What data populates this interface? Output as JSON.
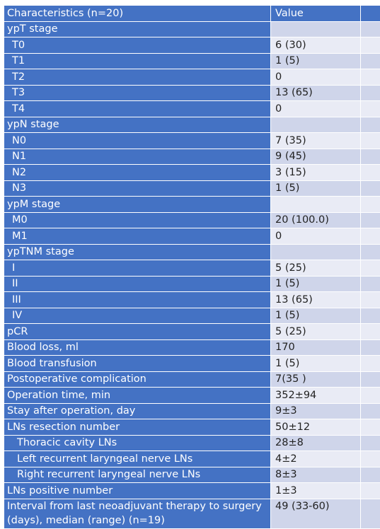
{
  "header": {
    "characteristics": "Characteristics (n=20)",
    "value": "Value"
  },
  "rows": [
    {
      "label": "ypT stage",
      "value": ""
    },
    {
      "label": "T0",
      "value": "6 (30)"
    },
    {
      "label": "T1",
      "value": "1 (5)"
    },
    {
      "label": "T2",
      "value": "0"
    },
    {
      "label": "T3",
      "value": "13 (65)"
    },
    {
      "label": "T4",
      "value": "0"
    },
    {
      "label": "ypN stage",
      "value": ""
    },
    {
      "label": "N0",
      "value": "7 (35)"
    },
    {
      "label": "N1",
      "value": "9 (45)"
    },
    {
      "label": "N2",
      "value": "3 (15)"
    },
    {
      "label": "N3",
      "value": "1 (5)"
    },
    {
      "label": "ypM stage",
      "value": ""
    },
    {
      "label": "M0",
      "value": "20 (100.0)"
    },
    {
      "label": "M1",
      "value": "0"
    },
    {
      "label": "ypTNM stage",
      "value": ""
    },
    {
      "label": "I",
      "value": "5 (25)"
    },
    {
      "label": "II",
      "value": "1 (5)"
    },
    {
      "label": "III",
      "value": "13 (65)"
    },
    {
      "label": "IV",
      "value": "1 (5)"
    },
    {
      "label": "pCR",
      "value": "5 (25)"
    },
    {
      "label": "Blood loss, ml",
      "value": "170"
    },
    {
      "label": "Blood transfusion",
      "value": "1 (5)"
    },
    {
      "label": "Postoperative complication",
      "value": "7(35 )"
    },
    {
      "label": "Operation time, min",
      "value": "352±94"
    },
    {
      "label": "Stay after operation, day",
      "value": "9±3"
    },
    {
      "label": "LNs resection number",
      "value": "50±12"
    },
    {
      "label": "Thoracic cavity LNs",
      "value": "28±8"
    },
    {
      "label": "Left recurrent laryngeal nerve LNs",
      "value": "4±2"
    },
    {
      "label": "Right recurrent laryngeal nerve LNs",
      "value": "8±3"
    },
    {
      "label": "LNs positive number",
      "value": "1±3"
    },
    {
      "label": "Interval from last neoadjuvant therapy to surgery (days), median (range) (n=19)",
      "value": "49 (33-60)"
    }
  ],
  "colors": {
    "header_blue": "#4472c4",
    "band_light": "#cfd5ea",
    "band_dark": "#e9ebf5",
    "text_white": "#ffffff"
  }
}
